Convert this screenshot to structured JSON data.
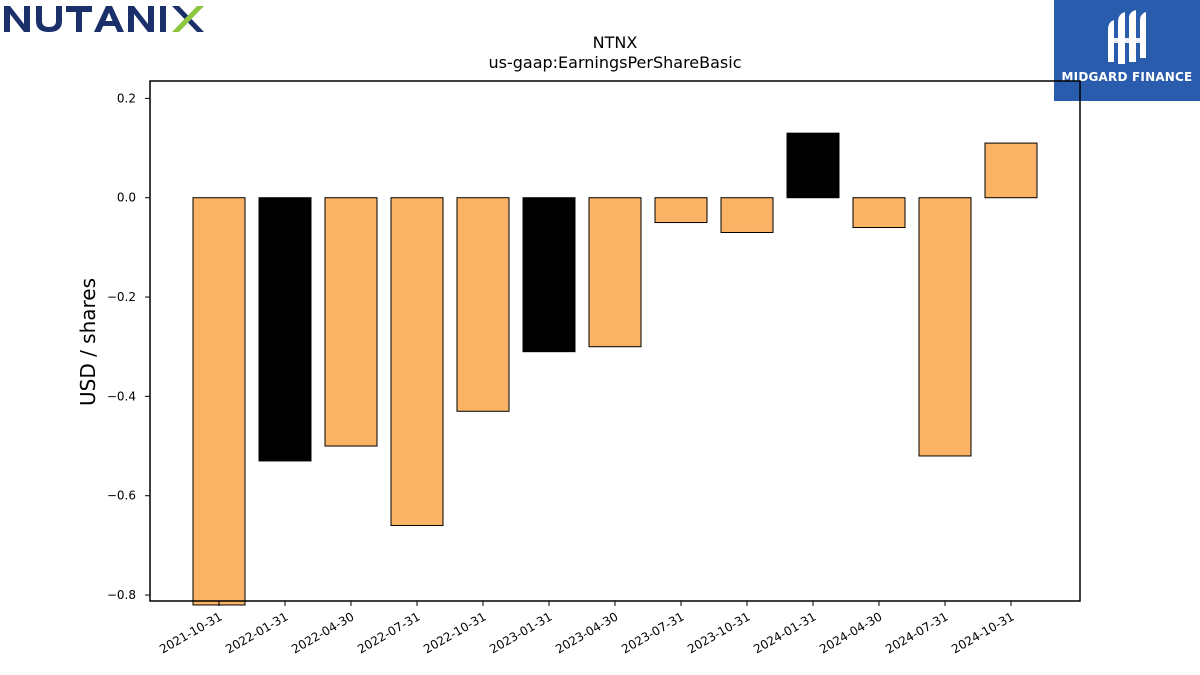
{
  "brand": {
    "company_logo_text": "NUTANIX",
    "company_logo_color": "#1b2f6b",
    "company_logo_accent": "#8dc63f",
    "publisher_name": "MIDGARD FINANCE",
    "publisher_bg": "#2a5cad"
  },
  "chart_data": {
    "type": "bar",
    "title": "NTNX",
    "subtitle": "us-gaap:EarningsPerShareBasic",
    "xlabel": "",
    "ylabel": "USD / shares",
    "categories": [
      "2021-10-31",
      "2022-01-31",
      "2022-04-30",
      "2022-07-31",
      "2022-10-31",
      "2023-01-31",
      "2023-04-30",
      "2023-07-31",
      "2023-10-31",
      "2024-01-31",
      "2024-04-30",
      "2024-07-31",
      "2024-10-31"
    ],
    "values": [
      -0.82,
      -0.53,
      -0.5,
      -0.66,
      -0.43,
      -0.31,
      -0.3,
      -0.05,
      -0.07,
      0.13,
      -0.06,
      -0.52,
      0.11
    ],
    "bar_colors": [
      "#fbb465",
      "#000000",
      "#fbb465",
      "#fbb465",
      "#fbb465",
      "#000000",
      "#fbb465",
      "#fbb465",
      "#fbb465",
      "#000000",
      "#fbb465",
      "#fbb465",
      "#fbb465"
    ],
    "ylim": [
      -0.812,
      0.235
    ],
    "yticks": [
      0.2,
      0.0,
      -0.2,
      -0.4,
      -0.6,
      -0.8
    ],
    "ytick_labels": [
      "0.2",
      "0.0",
      "−0.2",
      "−0.4",
      "−0.6",
      "−0.8"
    ],
    "grid": false,
    "legend": "none"
  }
}
